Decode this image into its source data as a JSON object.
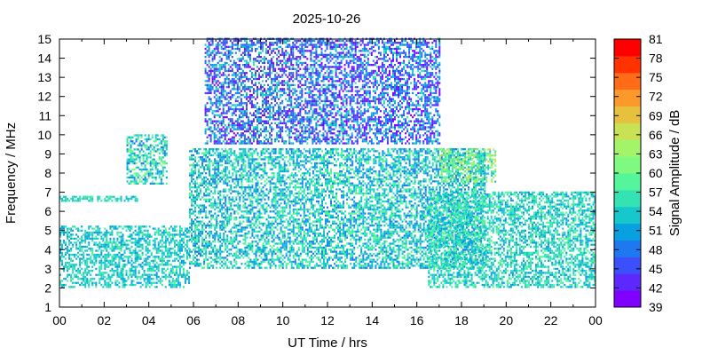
{
  "chart_data": {
    "type": "heatmap",
    "title": "2025-10-26",
    "xlabel": "UT Time / hrs",
    "ylabel": "Frequency / MHz",
    "xlim": [
      0,
      24
    ],
    "ylim": [
      1,
      15
    ],
    "x_ticks": [
      "00",
      "02",
      "04",
      "06",
      "08",
      "10",
      "12",
      "14",
      "16",
      "18",
      "20",
      "22",
      "00"
    ],
    "y_ticks": [
      "1",
      "2",
      "3",
      "4",
      "5",
      "6",
      "7",
      "8",
      "9",
      "10",
      "11",
      "12",
      "13",
      "14",
      "15"
    ],
    "colorbar": {
      "label": "Signal Amplitude / dB",
      "range": [
        39,
        81
      ],
      "ticks": [
        "39",
        "42",
        "45",
        "48",
        "51",
        "54",
        "57",
        "60",
        "63",
        "66",
        "69",
        "72",
        "75",
        "78",
        "81"
      ],
      "colors": [
        "#8000ff",
        "#5d28fc",
        "#3b50fb",
        "#1e78f0",
        "#09a0e0",
        "#16c7cb",
        "#33e3b4",
        "#55f59b",
        "#7efa80",
        "#a4f46a",
        "#c9e155",
        "#e7c13e",
        "#fb9a2a",
        "#ff6b17",
        "#ff3200",
        "#ff0000"
      ]
    },
    "grid": false,
    "regions": [
      {
        "name_key": "night_low_band_0_6",
        "t": [
          0,
          5.8
        ],
        "f": [
          2.0,
          5.2
        ],
        "amp": [
          50,
          58
        ]
      },
      {
        "name_key": "night_band_6_7",
        "t": [
          0,
          3.5
        ],
        "f": [
          6.5,
          6.8
        ],
        "amp": [
          52,
          58
        ]
      },
      {
        "name_key": "morning_trace_9_10",
        "t": [
          3.0,
          4.8
        ],
        "f": [
          7.4,
          10.0
        ],
        "amp": [
          48,
          62
        ]
      },
      {
        "name_key": "day_mid_band",
        "t": [
          5.8,
          19.0
        ],
        "f": [
          3.0,
          9.3
        ],
        "amp": [
          48,
          60
        ]
      },
      {
        "name_key": "day_high_band",
        "t": [
          6.5,
          17.0
        ],
        "f": [
          9.5,
          15.0
        ],
        "amp": [
          39,
          56
        ]
      },
      {
        "name_key": "evening_band",
        "t": [
          16.5,
          24.0
        ],
        "f": [
          2.0,
          7.0
        ],
        "amp": [
          50,
          60
        ]
      },
      {
        "name_key": "evening_trace_8_9",
        "t": [
          17.0,
          19.5
        ],
        "f": [
          7.5,
          9.2
        ],
        "amp": [
          52,
          68
        ]
      }
    ]
  }
}
